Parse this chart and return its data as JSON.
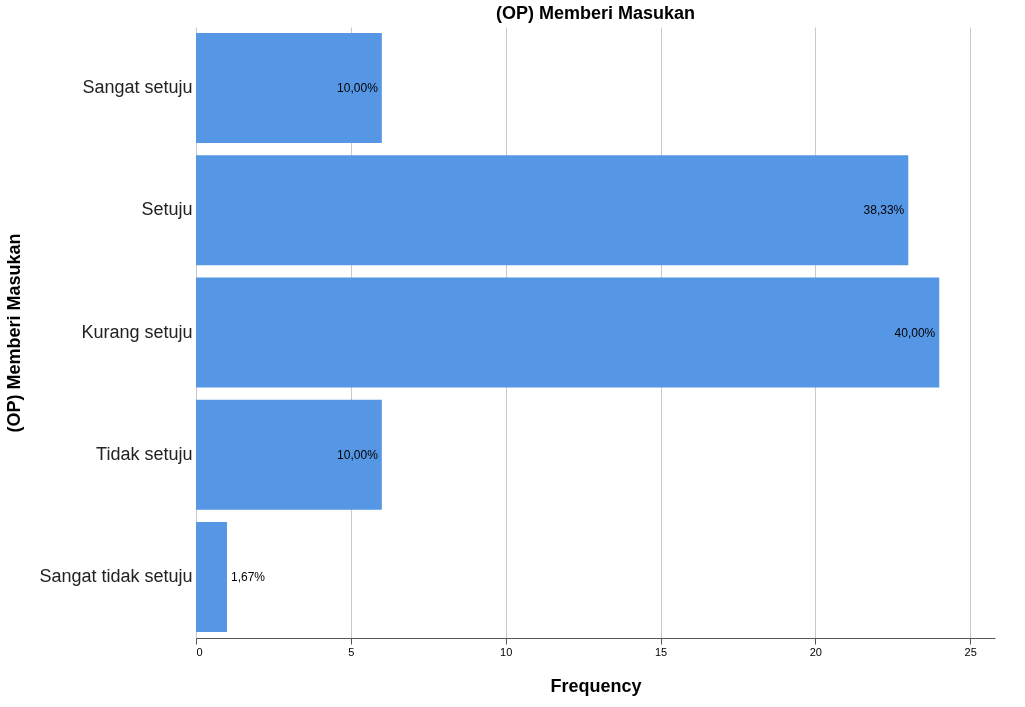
{
  "chart_data": {
    "type": "bar",
    "orientation": "horizontal",
    "title": "(OP) Memberi Masukan",
    "xlabel": "Frequency",
    "ylabel": "(OP) Memberi Masukan",
    "categories": [
      "Sangat setuju",
      "Setuju",
      "Kurang setuju",
      "Tidak setuju",
      "Sangat tidak setuju"
    ],
    "values": [
      6,
      23,
      24,
      6,
      1
    ],
    "annotations": [
      {
        "text": "10,00%",
        "x": 6,
        "y": "Sangat setuju"
      },
      {
        "text": "38,33%",
        "x": 23,
        "y": "Setuju"
      },
      {
        "text": "40,00%",
        "x": 24,
        "y": "Kurang setuju"
      },
      {
        "text": "10,00%",
        "x": 6,
        "y": "Tidak setuju"
      },
      {
        "text": "1,67%",
        "x": 1,
        "y": "Sangat tidak setuju"
      }
    ],
    "color": "#5596e5",
    "xlim": [
      0,
      25.8
    ],
    "xticks": [
      0,
      5,
      10,
      15,
      20,
      25
    ],
    "grid": "x"
  }
}
